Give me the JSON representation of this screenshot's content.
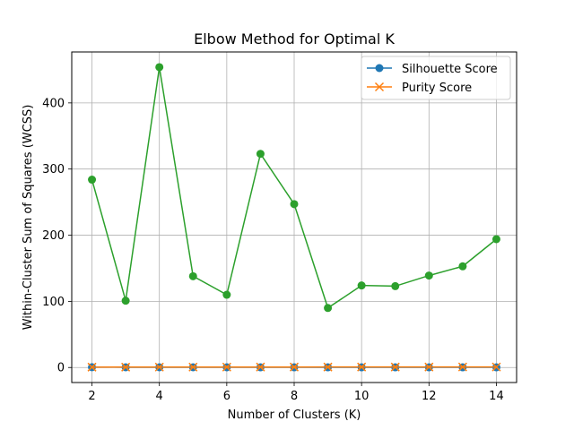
{
  "chart_data": {
    "type": "line",
    "title": "Elbow Method for Optimal K",
    "xlabel": "Number of Clusters (K)",
    "ylabel": "Within-Cluster Sum of Squares (WCSS)",
    "x": [
      2,
      3,
      4,
      5,
      6,
      7,
      8,
      9,
      10,
      11,
      12,
      13,
      14
    ],
    "xlim": [
      1.4,
      14.6
    ],
    "ylim": [
      -22.7,
      477
    ],
    "xticks": [
      2,
      4,
      6,
      8,
      10,
      12,
      14
    ],
    "yticks": [
      0,
      100,
      200,
      300,
      400
    ],
    "grid": true,
    "legend_position": "top-right",
    "series": [
      {
        "name": "Silhouette Score",
        "color": "#1f77b4",
        "marker": "circle",
        "values": [
          0.45,
          0.4,
          0.35,
          0.33,
          0.32,
          0.31,
          0.3,
          0.29,
          0.28,
          0.28,
          0.27,
          0.27,
          0.26
        ],
        "in_legend": true
      },
      {
        "name": "Purity Score",
        "color": "#ff7f0e",
        "marker": "x",
        "values": [
          0.55,
          0.6,
          0.65,
          0.68,
          0.7,
          0.72,
          0.74,
          0.75,
          0.76,
          0.77,
          0.78,
          0.79,
          0.8
        ],
        "in_legend": true
      },
      {
        "name": "",
        "color": "#2ca02c",
        "marker": "circle",
        "values": [
          284,
          101,
          454,
          138,
          110,
          323,
          247,
          90,
          124,
          123,
          139,
          153,
          194
        ],
        "in_legend": false
      }
    ]
  }
}
